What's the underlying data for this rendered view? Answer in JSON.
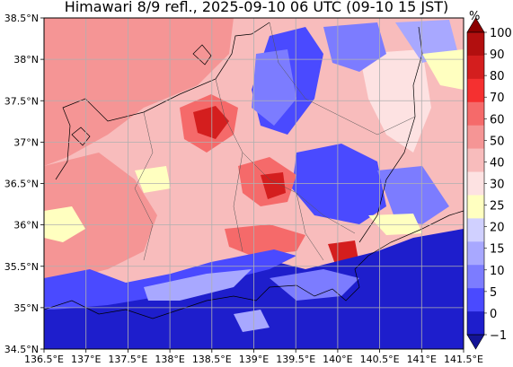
{
  "title": "Himawari 8/9 refl., 2025-09-10 06 UTC (09-10 15 JST)",
  "map": {
    "lon_range": [
      136.5,
      141.5
    ],
    "lat_range": [
      34.5,
      38.5
    ],
    "lon_ticks": [
      "136.5°E",
      "137°E",
      "137.5°E",
      "138°E",
      "138.5°E",
      "139°E",
      "139.5°E",
      "140°E",
      "140.5°E",
      "141°E",
      "141.5°E"
    ],
    "lat_ticks": [
      "38.5°N",
      "38°N",
      "37.5°N",
      "37°N",
      "36.5°N",
      "36°N",
      "35.5°N",
      "35°N",
      "34.5°N"
    ],
    "grid": true
  },
  "colorbar": {
    "unit": "%",
    "labels": [
      "100",
      "90",
      "80",
      "70",
      "60",
      "50",
      "40",
      "30",
      "25",
      "20",
      "15",
      "10",
      "5",
      "0",
      "−1"
    ],
    "colors": [
      "#8b0000",
      "#b20f0f",
      "#d41e1e",
      "#f53030",
      "#f56a6a",
      "#f59595",
      "#f8bcbc",
      "#fde2e2",
      "#ffffc0",
      "#d0d0ff",
      "#a8a8ff",
      "#7c7cff",
      "#4a4aff",
      "#1e1ecc",
      "#141496"
    ]
  },
  "colors": {
    "land_low": "#f59595",
    "land_mid": "#f8bcbc",
    "land_high": "#f56a6a",
    "cloud_core": "#d41e1e",
    "sea_dark": "#1e1ecc",
    "sea": "#4a4aff",
    "patch_light": "#a8a8ff",
    "patch_pale": "#ffffc0"
  }
}
